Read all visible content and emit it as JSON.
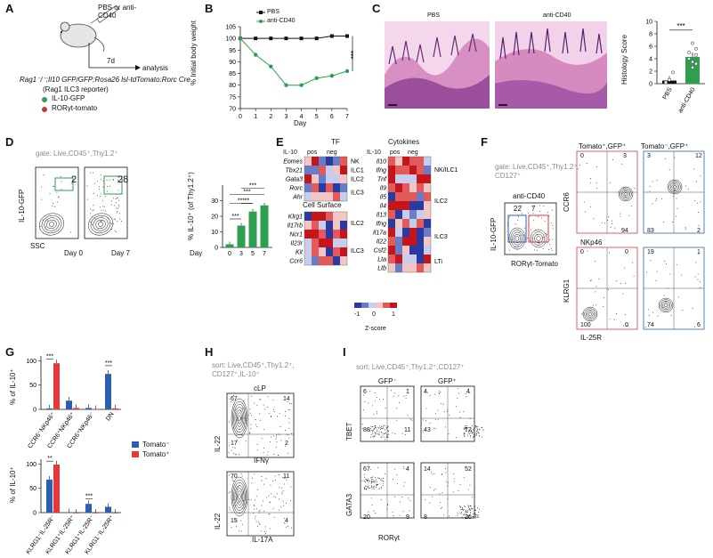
{
  "panels": {
    "A": "A",
    "B": "B",
    "C": "C",
    "D": "D",
    "E": "E",
    "F": "F",
    "G": "G",
    "H": "H",
    "I": "I"
  },
  "a": {
    "treatment": "PBS or anti-CD40",
    "duration": "7d",
    "analysis": "analysis",
    "genotype": "Rag1⁻/⁻;Il10 GFP/GFP;Rosa26 lsl-tdTomato;Rorc Cre",
    "reporter": "(Rag1 ILC3 reporter)",
    "legend1": "IL-10-GFP",
    "legend2": "RORγt-tomato",
    "color1": "#2e9e4f",
    "color2": "#c0392b"
  },
  "b": {
    "legend_pbs": "PBS",
    "legend_cd40": "anti-CD40",
    "ylabel": "% Initial body weight",
    "xlabel": "Day",
    "sig": "***",
    "chart_data": {
      "type": "line",
      "x": [
        0,
        1,
        2,
        3,
        4,
        5,
        6,
        7
      ],
      "series": [
        {
          "name": "PBS",
          "values": [
            100,
            100,
            100,
            100,
            100,
            100,
            101,
            101
          ],
          "color": "#111111"
        },
        {
          "name": "anti-CD40",
          "values": [
            100,
            93,
            88,
            80,
            80,
            83,
            84,
            86
          ],
          "color": "#2e9e4f"
        }
      ],
      "yticks": [
        70,
        75,
        80,
        85,
        90,
        95,
        100,
        105
      ],
      "ylim": [
        70,
        105
      ]
    }
  },
  "c": {
    "title_pbs": "PBS",
    "title_cd40": "anti-CD40",
    "ylabel": "Histology Score",
    "sig": "***",
    "chart_data": {
      "type": "bar",
      "categories": [
        "PBS",
        "anti-CD40"
      ],
      "values": [
        0.5,
        4.3
      ],
      "yticks": [
        0,
        2,
        4,
        6,
        8,
        10
      ],
      "ylim": [
        0,
        10
      ],
      "colors": [
        "#111111",
        "#2e9e4f"
      ]
    }
  },
  "d": {
    "gate": "gate: Live,CD45⁺,Thy1.2⁺",
    "ylabel": "IL-10-GFP",
    "xlabel": "SSC",
    "plot1_pct": "2",
    "plot1_label": "Day 0",
    "plot2_pct": "28",
    "plot2_label": "Day 7",
    "bar_ylabel": "% IL-10⁺ (of Thy1.2⁺)",
    "bar_xlabel": "Day",
    "sig": [
      "***",
      "***",
      "***",
      "**",
      "***"
    ],
    "chart_data": {
      "type": "bar",
      "categories": [
        "0",
        "3",
        "5",
        "7"
      ],
      "values": [
        2,
        14,
        23,
        27
      ],
      "yticks": [
        0,
        10,
        20,
        30
      ],
      "ylim": [
        0,
        40
      ]
    }
  },
  "e": {
    "tf_title": "TF",
    "cyto_title": "Cytokines",
    "surface_title": "Cell Surface",
    "il10": "IL-10",
    "pos": "pos",
    "neg": "neg",
    "zscore": "Z-score",
    "zmin": "-1",
    "zmid": "0",
    "zmax": "1",
    "tf_genes": [
      "Eomes",
      "Tbx21",
      "Gata3",
      "Rorc",
      "Ahr"
    ],
    "tf_groups": [
      "NK",
      "ILC1",
      "ILC2",
      "ILC3"
    ],
    "surface_genes": [
      "Klrg1",
      "Il17rb",
      "Ncr1",
      "Il23r",
      "Kit",
      "Ccr6"
    ],
    "surface_groups": [
      "ILC2",
      "ILC3"
    ],
    "cyto_genes": [
      "Il10",
      "Ifng",
      "Tnf",
      "Il9",
      "Il5",
      "Il4",
      "Il13",
      "Ifng",
      "Il17a",
      "Il22",
      "Csf2",
      "Lta",
      "Ltb"
    ],
    "cyto_groups": [
      "NK/ILC1",
      "ILC2",
      "ILC3",
      "LTi"
    ]
  },
  "f": {
    "gate": "gate: Live,CD45⁺,Thy1.2⁺,",
    "gate2": "CD127⁺",
    "treatment": "anti-CD40",
    "ylabel": "IL-10-GFP",
    "xlabel": "RORγt-Tomato",
    "main_q1": "22",
    "main_q2": "7",
    "col1": "Tomato⁺,GFP⁺",
    "col2": "Tomato⁻,GFP⁺",
    "ccr6": "CCR6",
    "nkp46": "NKp46",
    "klrg1": "KLRG1",
    "il25r": "IL-25R",
    "q_tl": [
      "0",
      "3",
      "",
      "94"
    ],
    "q_tr": [
      "3",
      "12",
      "83",
      "2"
    ],
    "q_bl": [
      "0",
      "0",
      "100",
      "0"
    ],
    "q_br": [
      "19",
      "1",
      "74",
      "6"
    ]
  },
  "g": {
    "ylabel1": "% of IL-10⁺",
    "ylabel2": "% of IL-10⁺",
    "legend_neg": "Tomato⁻",
    "legend_pos": "Tomato⁺",
    "blue": "#2b5fb4",
    "red": "#e8363a",
    "cats1": [
      "CCR6⁻NKp46⁺",
      "CCR6⁺NKp46⁺",
      "CCR6⁺NKp46⁻",
      "DN"
    ],
    "cats2": [
      "KLRG1⁻IL-25R⁻",
      "KLRG1⁺IL-25R⁺",
      "KLRG1⁺IL-25R⁻",
      "KLRG1⁻IL-25R⁺"
    ],
    "sig1": [
      "***",
      "***"
    ],
    "sig2": [
      "**",
      "***"
    ],
    "chart_data": [
      {
        "type": "bar",
        "categories": [
          "CCR6⁻NKp46⁺",
          "CCR6⁺NKp46⁺",
          "CCR6⁺NKp46⁻",
          "DN"
        ],
        "series": [
          {
            "name": "Tomato⁻",
            "values": [
              2,
              18,
              3,
              73
            ]
          },
          {
            "name": "Tomato⁺",
            "values": [
              95,
              3,
              1,
              2
            ]
          }
        ],
        "yticks": [
          0,
          50,
          100
        ],
        "ylim": [
          0,
          110
        ]
      },
      {
        "type": "bar",
        "categories": [
          "KLRG1⁻IL-25R⁻",
          "KLRG1⁺IL-25R⁺",
          "KLRG1⁺IL-25R⁻",
          "KLRG1⁻IL-25R⁺"
        ],
        "series": [
          {
            "name": "Tomato⁻",
            "values": [
              68,
              1,
              18,
              12
            ]
          },
          {
            "name": "Tomato⁺",
            "values": [
              99,
              0,
              0,
              0
            ]
          }
        ],
        "yticks": [
          0,
          50,
          100
        ],
        "ylim": [
          0,
          110
        ]
      }
    ]
  },
  "h": {
    "sort": "sort: Live,CD45⁺,Thy1.2⁺,",
    "sort2": "CD127⁺,IL-10⁺",
    "title": "cLP",
    "il22": "IL-22",
    "ifng": "IFNγ",
    "il17a": "IL-17A",
    "p1": [
      "67",
      "14",
      "17",
      "2"
    ],
    "p2": [
      "70",
      "11",
      "15",
      "4"
    ]
  },
  "i": {
    "sort": "sort: Live,CD45⁺,Thy1.2⁺,CD127⁺",
    "gfp_neg": "GFP⁻",
    "gfp_pos": "GFP⁺",
    "tbet": "TBET",
    "gata3": "GATA3",
    "rorgt": "RORγt",
    "p1": [
      "6",
      "1",
      "88",
      "11"
    ],
    "p2": [
      "4",
      "4",
      "43",
      "72"
    ],
    "p3": [
      "67",
      "4",
      "20",
      "9"
    ],
    "p4": [
      "14",
      "52",
      "8",
      "26"
    ]
  }
}
